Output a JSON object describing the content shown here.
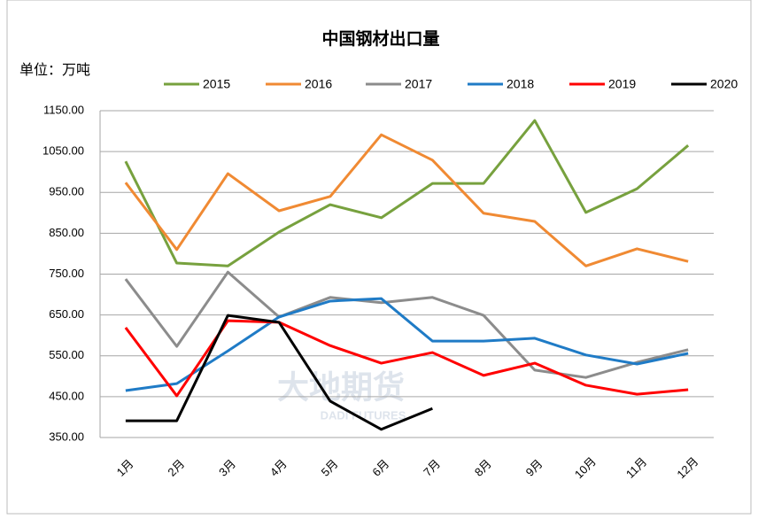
{
  "chart_data": {
    "type": "line",
    "title": "中国钢材出口量",
    "unit_label": "单位：万吨",
    "watermark": {
      "title": "大地期货",
      "subtitle": "DADI FUTURES"
    },
    "categories": [
      "1月",
      "2月",
      "3月",
      "4月",
      "5月",
      "6月",
      "7月",
      "8月",
      "9月",
      "10月",
      "11月",
      "12月"
    ],
    "series": [
      {
        "name": "2015",
        "color": "#77a13e",
        "values": [
          1026,
          777,
          770,
          853,
          920,
          888,
          972,
          972,
          1126,
          901,
          959,
          1065
        ]
      },
      {
        "name": "2016",
        "color": "#f08a33",
        "values": [
          974,
          810,
          996,
          905,
          940,
          1091,
          1029,
          899,
          879,
          770,
          812,
          781
        ]
      },
      {
        "name": "2017",
        "color": "#8c8c8c",
        "values": [
          738,
          573,
          755,
          645,
          693,
          680,
          693,
          649,
          515,
          497,
          534,
          565
        ]
      },
      {
        "name": "2018",
        "color": "#1f7bc6",
        "values": [
          465,
          482,
          562,
          645,
          684,
          690,
          586,
          586,
          593,
          552,
          530,
          556
        ]
      },
      {
        "name": "2019",
        "color": "#ff0000",
        "values": [
          619,
          452,
          636,
          632,
          575,
          532,
          558,
          502,
          532,
          478,
          456,
          467
        ]
      },
      {
        "name": "2020",
        "color": "#000000",
        "values": [
          391,
          391,
          649,
          632,
          439,
          370,
          421,
          null,
          null,
          null,
          null,
          null
        ]
      }
    ],
    "ylim": [
      350,
      1150
    ],
    "yticks": [
      {
        "value": 350,
        "label": "350.00"
      },
      {
        "value": 450,
        "label": "450.00"
      },
      {
        "value": 550,
        "label": "550.00"
      },
      {
        "value": 650,
        "label": "650.00"
      },
      {
        "value": 750,
        "label": "750.00"
      },
      {
        "value": 850,
        "label": "850.00"
      },
      {
        "value": 950,
        "label": "950.00"
      },
      {
        "value": 1050,
        "label": "1050.00"
      },
      {
        "value": 1150,
        "label": "1150.00"
      }
    ],
    "grid": true,
    "legend": "top"
  }
}
